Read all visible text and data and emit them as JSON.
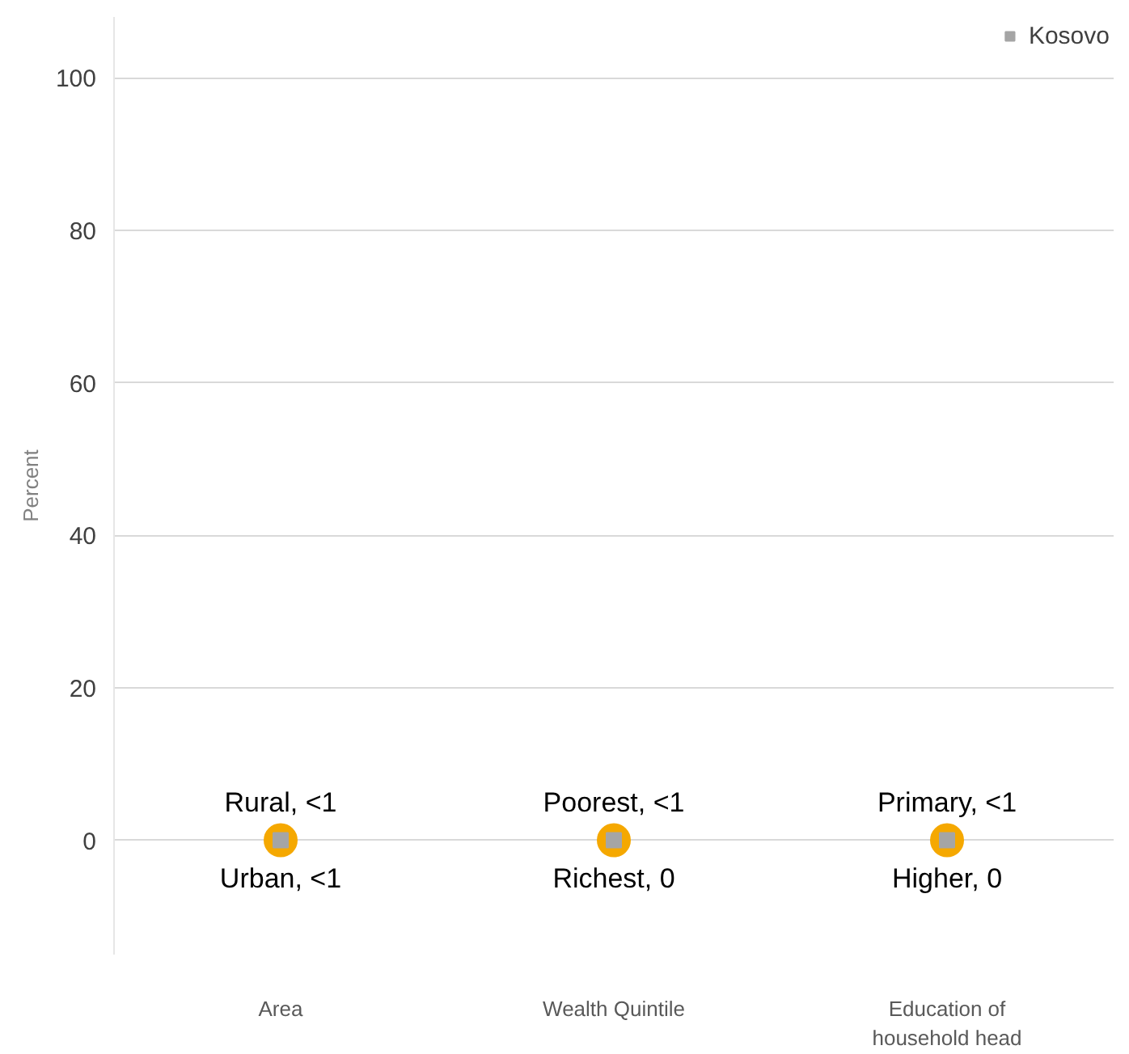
{
  "chart_data": {
    "type": "scatter",
    "ylabel": "Percent",
    "categories": [
      "Area",
      "Wealth Quintile",
      "Education of household head"
    ],
    "ylim": [
      -15,
      108
    ],
    "yticks": [
      0,
      20,
      40,
      60,
      80,
      100
    ],
    "grid": "y",
    "legend": "top right",
    "marker": "circle",
    "series": [
      {
        "color": "#f5a800",
        "values": [
          0,
          0,
          0
        ],
        "value_labels": [
          "Rural, <1",
          "Poorest, <1",
          "Primary, <1"
        ]
      },
      {
        "name": "Kosovo",
        "color": "#a5a5a5",
        "marker": "square",
        "values": [
          0,
          0,
          0
        ]
      }
    ],
    "annotations": [
      {
        "text": "Urban, <1",
        "x": "Area",
        "y": 0
      },
      {
        "text": "Richest, 0",
        "x": "Wealth Quintile",
        "y": 0
      },
      {
        "text": "Higher, 0",
        "x": "Education of household head",
        "y": 0
      }
    ]
  }
}
